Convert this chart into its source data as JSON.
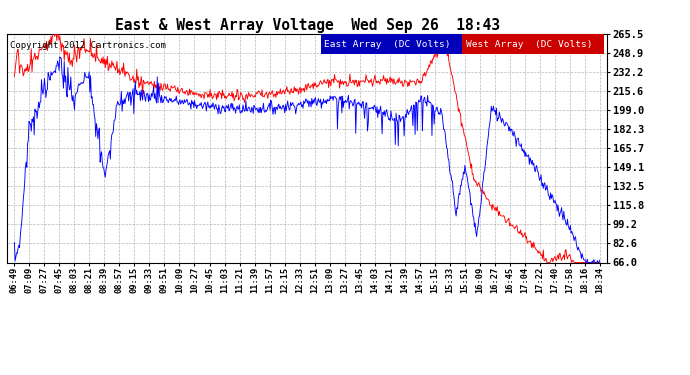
{
  "title": "East & West Array Voltage  Wed Sep 26  18:43",
  "copyright": "Copyright 2012 Cartronics.com",
  "legend_east": "East Array  (DC Volts)",
  "legend_west": "West Array  (DC Volts)",
  "east_color": "#0000ff",
  "west_color": "#ff0000",
  "bg_color": "#ffffff",
  "plot_bg_color": "#ffffff",
  "grid_color": "#b0b0b0",
  "yticks": [
    66.0,
    82.6,
    99.2,
    115.8,
    132.5,
    149.1,
    165.7,
    182.3,
    199.0,
    215.6,
    232.2,
    248.9,
    265.5
  ],
  "ylim": [
    66.0,
    265.5
  ],
  "xtick_labels": [
    "06:49",
    "07:09",
    "07:27",
    "07:45",
    "08:03",
    "08:21",
    "08:39",
    "08:57",
    "09:15",
    "09:33",
    "09:51",
    "10:09",
    "10:27",
    "10:45",
    "11:03",
    "11:21",
    "11:39",
    "11:57",
    "12:15",
    "12:33",
    "12:51",
    "13:09",
    "13:27",
    "13:45",
    "14:03",
    "14:21",
    "14:39",
    "14:57",
    "15:15",
    "15:33",
    "15:51",
    "16:09",
    "16:27",
    "16:45",
    "17:04",
    "17:22",
    "17:40",
    "17:58",
    "18:16",
    "18:34"
  ]
}
